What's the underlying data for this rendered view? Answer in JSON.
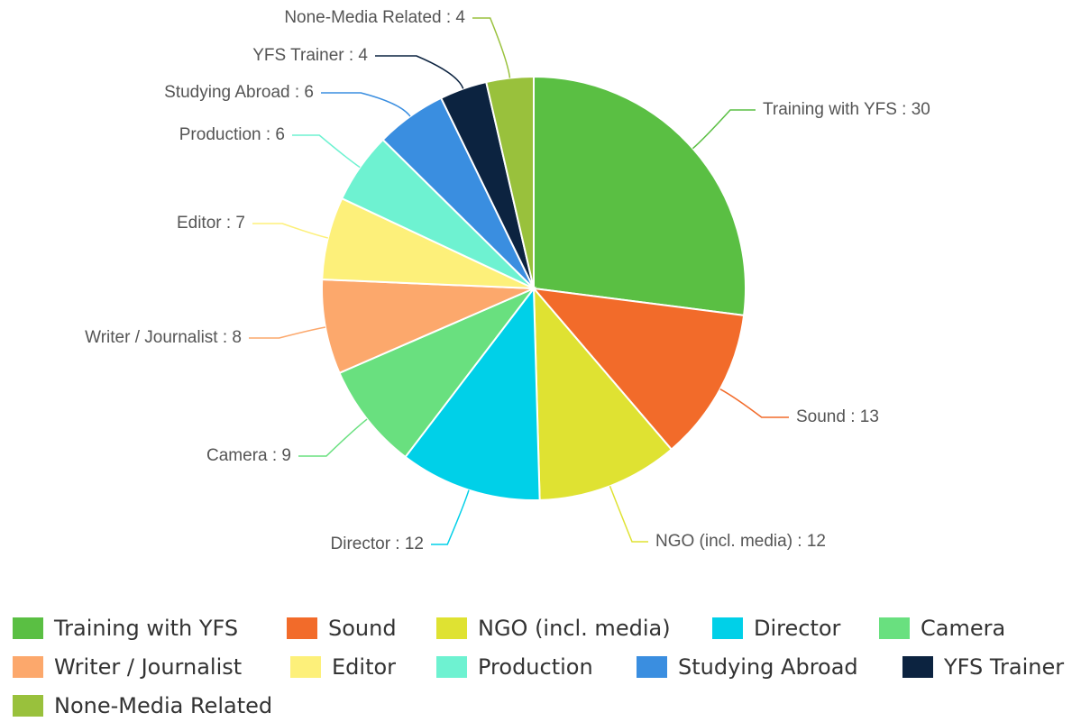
{
  "chart_data": {
    "type": "pie",
    "categories": [
      "Training with YFS",
      "Sound",
      "NGO (incl. media)",
      "Director",
      "Camera",
      "Writer / Journalist",
      "Editor",
      "Production",
      "Studying Abroad",
      "YFS Trainer",
      "None-Media Related"
    ],
    "values": [
      30,
      13,
      12,
      12,
      9,
      8,
      7,
      6,
      6,
      4,
      4
    ],
    "value_labels": [
      "Training with YFS : 30",
      "Sound : 13",
      "NGO (incl. media) : 12",
      "Director : 12",
      "Camera : 9",
      "Writer / Journalist : 8",
      "Editor : 7",
      "Production : 6",
      "Studying Abroad : 6",
      "YFS Trainer : 4",
      "None-Media Related : 4"
    ],
    "colors": [
      "#5abf43",
      "#f26b2a",
      "#dfe232",
      "#00d0e8",
      "#69e07f",
      "#fca86c",
      "#fdf07a",
      "#6ef2d1",
      "#3a8ee0",
      "#0c2340",
      "#99c13c"
    ],
    "legend": "bottom"
  }
}
